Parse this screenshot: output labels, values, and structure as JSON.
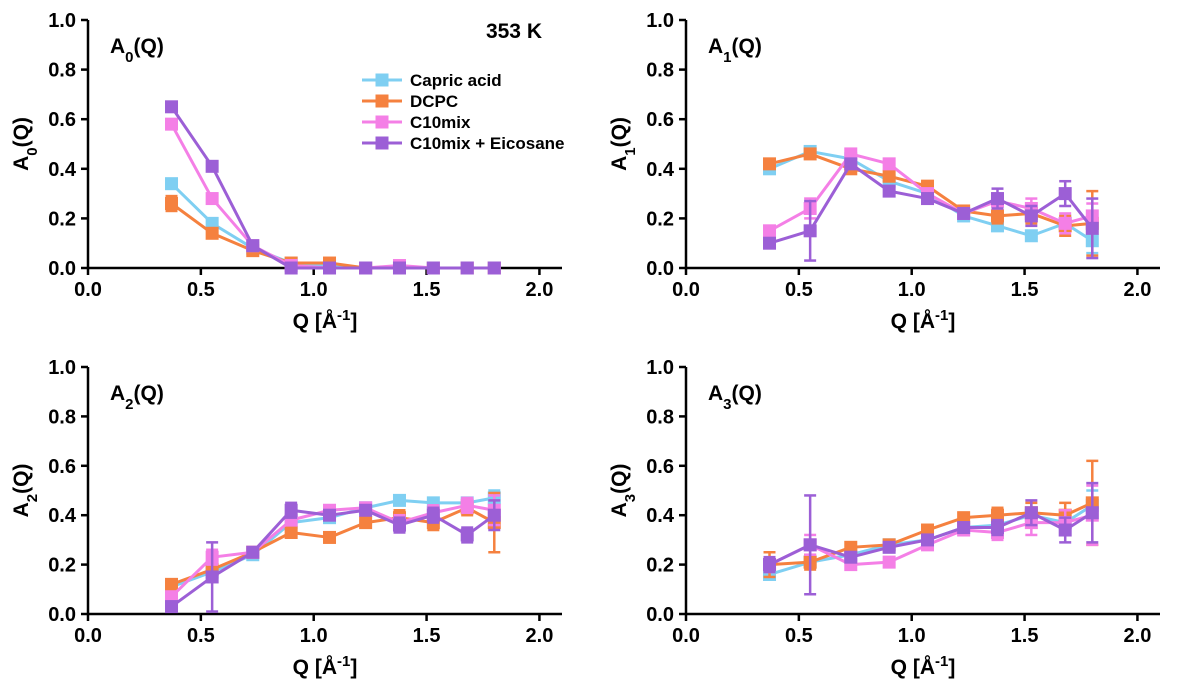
{
  "figure": {
    "annotation": "353 K",
    "legend": {
      "placement": "top-right of first panel",
      "entries": [
        {
          "label": "Capric acid",
          "color": "#7fcff2"
        },
        {
          "label": "DCPC",
          "color": "#f5813f"
        },
        {
          "label": "C10mix",
          "color": "#f47fe6"
        },
        {
          "label": "C10mix + Eicosane",
          "color": "#9c5fd6"
        }
      ]
    }
  },
  "chart_data": [
    {
      "type": "line",
      "panel_label": "A0(Q)",
      "ylabel": "A0(Q)",
      "xlabel": "Q [Å-1]",
      "xlim": [
        0,
        2.1
      ],
      "ylim": [
        0,
        1.0
      ],
      "xticks": [
        "0.0",
        "0.5",
        "1.0",
        "1.5",
        "2.0"
      ],
      "yticks": [
        "0.0",
        "0.2",
        "0.4",
        "0.6",
        "0.8",
        "1.0"
      ],
      "x": [
        0.37,
        0.55,
        0.73,
        0.9,
        1.07,
        1.23,
        1.38,
        1.53,
        1.68,
        1.8
      ],
      "series": [
        {
          "name": "Capric acid",
          "color": "#7fcff2",
          "values": [
            0.34,
            0.18,
            0.08,
            0.02,
            0.01,
            0.0,
            0.0,
            0.0,
            0.0,
            0.0
          ],
          "errors": [
            0.02,
            0.01,
            0.01,
            0.01,
            0.01,
            0.01,
            0.01,
            0.01,
            0.01,
            0.01
          ]
        },
        {
          "name": "DCPC",
          "color": "#f5813f",
          "values": [
            0.26,
            0.14,
            0.07,
            0.02,
            0.02,
            0.0,
            0.0,
            0.0,
            0.0,
            0.0
          ],
          "errors": [
            0.03,
            0.01,
            0.01,
            0.01,
            0.01,
            0.01,
            0.01,
            0.01,
            0.01,
            0.01
          ]
        },
        {
          "name": "C10mix",
          "color": "#f47fe6",
          "values": [
            0.58,
            0.28,
            0.09,
            0.01,
            0.0,
            0.0,
            0.01,
            0.0,
            0.0,
            0.0
          ],
          "errors": [
            0.02,
            0.01,
            0.01,
            0.01,
            0.01,
            0.01,
            0.01,
            0.01,
            0.01,
            0.01
          ]
        },
        {
          "name": "C10mix + Eicosane",
          "color": "#9c5fd6",
          "values": [
            0.65,
            0.41,
            0.09,
            0.0,
            0.0,
            0.0,
            0.0,
            0.0,
            0.0,
            0.0
          ],
          "errors": [
            0.02,
            0.01,
            0.01,
            0.01,
            0.01,
            0.01,
            0.01,
            0.01,
            0.01,
            0.01
          ]
        }
      ]
    },
    {
      "type": "line",
      "panel_label": "A1(Q)",
      "ylabel": "A1(Q)",
      "xlabel": "Q [Å-1]",
      "xlim": [
        0,
        2.1
      ],
      "ylim": [
        0,
        1.0
      ],
      "xticks": [
        "0.0",
        "0.5",
        "1.0",
        "1.5",
        "2.0"
      ],
      "yticks": [
        "0.0",
        "0.2",
        "0.4",
        "0.6",
        "0.8",
        "1.0"
      ],
      "x": [
        0.37,
        0.55,
        0.73,
        0.9,
        1.07,
        1.23,
        1.38,
        1.53,
        1.68,
        1.8
      ],
      "series": [
        {
          "name": "Capric acid",
          "color": "#7fcff2",
          "values": [
            0.4,
            0.47,
            0.44,
            0.35,
            0.3,
            0.21,
            0.17,
            0.13,
            0.18,
            0.11
          ],
          "errors": [
            0.02,
            0.01,
            0.01,
            0.02,
            0.02,
            0.02,
            0.02,
            0.02,
            0.03,
            0.05
          ]
        },
        {
          "name": "DCPC",
          "color": "#f5813f",
          "values": [
            0.42,
            0.46,
            0.4,
            0.37,
            0.33,
            0.23,
            0.21,
            0.22,
            0.17,
            0.18
          ],
          "errors": [
            0.02,
            0.01,
            0.01,
            0.02,
            0.02,
            0.02,
            0.03,
            0.04,
            0.04,
            0.13
          ]
        },
        {
          "name": "C10mix",
          "color": "#f47fe6",
          "values": [
            0.15,
            0.24,
            0.46,
            0.42,
            0.3,
            0.22,
            0.27,
            0.24,
            0.18,
            0.21
          ],
          "errors": [
            0.02,
            0.04,
            0.01,
            0.02,
            0.02,
            0.02,
            0.03,
            0.04,
            0.04,
            0.05
          ]
        },
        {
          "name": "C10mix + Eicosane",
          "color": "#9c5fd6",
          "values": [
            0.1,
            0.15,
            0.42,
            0.31,
            0.28,
            0.22,
            0.28,
            0.21,
            0.3,
            0.16
          ],
          "errors": [
            0.02,
            0.12,
            0.01,
            0.02,
            0.02,
            0.02,
            0.04,
            0.04,
            0.05,
            0.12
          ]
        }
      ]
    },
    {
      "type": "line",
      "panel_label": "A2(Q)",
      "ylabel": "A2(Q)",
      "xlabel": "Q [Å-1]",
      "xlim": [
        0,
        2.1
      ],
      "ylim": [
        0,
        1.0
      ],
      "xticks": [
        "0.0",
        "0.5",
        "1.0",
        "1.5",
        "2.0"
      ],
      "yticks": [
        "0.0",
        "0.2",
        "0.4",
        "0.6",
        "0.8",
        "1.0"
      ],
      "x": [
        0.37,
        0.55,
        0.73,
        0.9,
        1.07,
        1.23,
        1.38,
        1.53,
        1.68,
        1.8
      ],
      "series": [
        {
          "name": "Capric acid",
          "color": "#7fcff2",
          "values": [
            0.11,
            0.17,
            0.24,
            0.37,
            0.39,
            0.43,
            0.46,
            0.45,
            0.45,
            0.47
          ],
          "errors": [
            0.02,
            0.02,
            0.01,
            0.02,
            0.02,
            0.01,
            0.02,
            0.02,
            0.02,
            0.03
          ]
        },
        {
          "name": "DCPC",
          "color": "#f5813f",
          "values": [
            0.12,
            0.18,
            0.25,
            0.33,
            0.31,
            0.37,
            0.39,
            0.37,
            0.43,
            0.37
          ],
          "errors": [
            0.02,
            0.02,
            0.01,
            0.02,
            0.02,
            0.02,
            0.03,
            0.03,
            0.03,
            0.12
          ]
        },
        {
          "name": "C10mix",
          "color": "#f47fe6",
          "values": [
            0.07,
            0.23,
            0.25,
            0.38,
            0.42,
            0.43,
            0.37,
            0.41,
            0.44,
            0.42
          ],
          "errors": [
            0.02,
            0.03,
            0.01,
            0.02,
            0.02,
            0.02,
            0.03,
            0.03,
            0.03,
            0.06
          ]
        },
        {
          "name": "C10mix + Eicosane",
          "color": "#9c5fd6",
          "values": [
            0.03,
            0.15,
            0.25,
            0.42,
            0.4,
            0.42,
            0.36,
            0.4,
            0.32,
            0.4
          ],
          "errors": [
            0.02,
            0.14,
            0.01,
            0.03,
            0.02,
            0.02,
            0.03,
            0.03,
            0.03,
            0.06
          ]
        }
      ]
    },
    {
      "type": "line",
      "panel_label": "A3(Q)",
      "ylabel": "A3(Q)",
      "xlabel": "Q [Å-1]",
      "xlim": [
        0,
        2.1
      ],
      "ylim": [
        0,
        1.0
      ],
      "xticks": [
        "0.0",
        "0.5",
        "1.0",
        "1.5",
        "2.0"
      ],
      "yticks": [
        "0.0",
        "0.2",
        "0.4",
        "0.6",
        "0.8",
        "1.0"
      ],
      "x": [
        0.37,
        0.55,
        0.73,
        0.9,
        1.07,
        1.23,
        1.38,
        1.53,
        1.68,
        1.8
      ],
      "series": [
        {
          "name": "Capric acid",
          "color": "#7fcff2",
          "values": [
            0.16,
            0.21,
            0.24,
            0.28,
            0.3,
            0.35,
            0.36,
            0.4,
            0.37,
            0.44
          ],
          "errors": [
            0.02,
            0.02,
            0.02,
            0.02,
            0.02,
            0.02,
            0.02,
            0.03,
            0.03,
            0.06
          ]
        },
        {
          "name": "DCPC",
          "color": "#f5813f",
          "values": [
            0.2,
            0.21,
            0.27,
            0.28,
            0.34,
            0.39,
            0.4,
            0.41,
            0.4,
            0.45
          ],
          "errors": [
            0.05,
            0.03,
            0.02,
            0.02,
            0.02,
            0.02,
            0.03,
            0.04,
            0.05,
            0.17
          ]
        },
        {
          "name": "C10mix",
          "color": "#f47fe6",
          "values": [
            0.2,
            0.28,
            0.2,
            0.21,
            0.28,
            0.34,
            0.33,
            0.37,
            0.37,
            0.4
          ],
          "errors": [
            0.03,
            0.04,
            0.02,
            0.02,
            0.02,
            0.02,
            0.03,
            0.05,
            0.05,
            0.12
          ]
        },
        {
          "name": "C10mix + Eicosane",
          "color": "#9c5fd6",
          "values": [
            0.2,
            0.28,
            0.23,
            0.27,
            0.3,
            0.35,
            0.35,
            0.41,
            0.34,
            0.41
          ],
          "errors": [
            0.03,
            0.2,
            0.02,
            0.02,
            0.02,
            0.02,
            0.03,
            0.05,
            0.05,
            0.12
          ]
        }
      ]
    }
  ]
}
